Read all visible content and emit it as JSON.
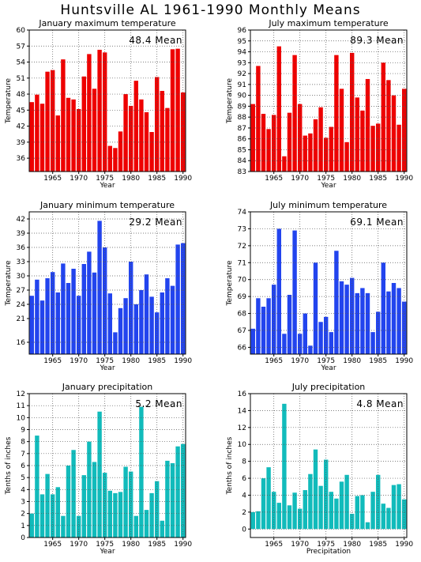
{
  "title": "Huntsville AL   1961-1990 Monthly Means",
  "chart_data": [
    {
      "type": "bar",
      "title": "January maximum temperature",
      "ylabel": "Temperature",
      "xlabel": "Year",
      "mean_label": "48.4 Mean",
      "color": "#ee0000",
      "x": [
        1961,
        1962,
        1963,
        1964,
        1965,
        1966,
        1967,
        1968,
        1969,
        1970,
        1971,
        1972,
        1973,
        1974,
        1975,
        1976,
        1977,
        1978,
        1979,
        1980,
        1981,
        1982,
        1983,
        1984,
        1985,
        1986,
        1987,
        1988,
        1989,
        1990
      ],
      "values": [
        46.5,
        47.9,
        46.2,
        52.2,
        52.5,
        44.0,
        54.5,
        47.3,
        47.0,
        45.2,
        51.3,
        55.5,
        49.0,
        56.3,
        55.8,
        38.3,
        37.9,
        41.0,
        48.0,
        45.8,
        50.5,
        47.0,
        44.6,
        40.9,
        51.2,
        48.6,
        45.4,
        56.4,
        56.5,
        48.3
      ],
      "ylim": [
        33.5,
        60
      ],
      "yticks": [
        36,
        39,
        42,
        45,
        48,
        51,
        54,
        57,
        60
      ],
      "xlim": [
        1960.5,
        1990.5
      ],
      "xticks": [
        1965,
        1970,
        1975,
        1980,
        1985,
        1990
      ]
    },
    {
      "type": "bar",
      "title": "July maximum temperature",
      "ylabel": "Temperature",
      "xlabel": "Year",
      "mean_label": "89.3 Mean",
      "color": "#ee0000",
      "x": [
        1961,
        1962,
        1963,
        1964,
        1965,
        1966,
        1967,
        1968,
        1969,
        1970,
        1971,
        1972,
        1973,
        1974,
        1975,
        1976,
        1977,
        1978,
        1979,
        1980,
        1981,
        1982,
        1983,
        1984,
        1985,
        1986,
        1987,
        1988,
        1989,
        1990
      ],
      "values": [
        89.2,
        92.7,
        88.3,
        86.9,
        88.2,
        94.5,
        84.4,
        88.4,
        93.7,
        89.2,
        86.3,
        86.5,
        87.8,
        88.9,
        86.1,
        87.1,
        93.7,
        90.6,
        85.7,
        93.9,
        89.8,
        88.6,
        91.5,
        87.2,
        87.4,
        93.0,
        91.4,
        90.0,
        87.3,
        90.6
      ],
      "ylim": [
        83,
        96
      ],
      "yticks": [
        83,
        84,
        85,
        86,
        87,
        88,
        89,
        90,
        91,
        92,
        93,
        94,
        95,
        96
      ],
      "xlim": [
        1960.5,
        1990.5
      ],
      "xticks": [
        1965,
        1970,
        1975,
        1980,
        1985,
        1990
      ]
    },
    {
      "type": "bar",
      "title": "January minimum temperature",
      "ylabel": "Temperature",
      "xlabel": "Year",
      "mean_label": "29.2 Mean",
      "color": "#2244ee",
      "x": [
        1961,
        1962,
        1963,
        1964,
        1965,
        1966,
        1967,
        1968,
        1969,
        1970,
        1971,
        1972,
        1973,
        1974,
        1975,
        1976,
        1977,
        1978,
        1979,
        1980,
        1981,
        1982,
        1983,
        1984,
        1985,
        1986,
        1987,
        1988,
        1989,
        1990
      ],
      "values": [
        25.8,
        29.2,
        24.8,
        29.5,
        30.8,
        26.5,
        32.6,
        28.5,
        31.5,
        25.8,
        32.5,
        35.1,
        30.7,
        41.6,
        36.0,
        26.3,
        18.1,
        23.2,
        25.3,
        33.0,
        24.0,
        27.0,
        30.3,
        25.6,
        22.3,
        26.5,
        29.5,
        27.9,
        36.6,
        36.9
      ],
      "ylim": [
        13.5,
        43.5
      ],
      "yticks": [
        16,
        21,
        24,
        27,
        30,
        33,
        36,
        39,
        42
      ],
      "xlim": [
        1960.5,
        1990.5
      ],
      "xticks": [
        1965,
        1970,
        1975,
        1980,
        1985,
        1990
      ]
    },
    {
      "type": "bar",
      "title": "July minimum temperature",
      "ylabel": "Temperature",
      "xlabel": "Year",
      "mean_label": "69.1 Mean",
      "color": "#2244ee",
      "x": [
        1961,
        1962,
        1963,
        1964,
        1965,
        1966,
        1967,
        1968,
        1969,
        1970,
        1971,
        1972,
        1973,
        1974,
        1975,
        1976,
        1977,
        1978,
        1979,
        1980,
        1981,
        1982,
        1983,
        1984,
        1985,
        1986,
        1987,
        1988,
        1989,
        1990
      ],
      "values": [
        67.1,
        68.9,
        68.4,
        68.9,
        69.7,
        73.0,
        66.8,
        69.1,
        72.9,
        66.8,
        68.0,
        66.1,
        71.0,
        67.5,
        67.8,
        66.9,
        71.7,
        69.9,
        69.7,
        70.1,
        69.2,
        69.5,
        69.2,
        66.9,
        68.1,
        71.0,
        69.3,
        69.8,
        69.5,
        68.7
      ],
      "ylim": [
        65.6,
        74
      ],
      "yticks": [
        66,
        67,
        68,
        69,
        70,
        71,
        72,
        73,
        74
      ],
      "xlim": [
        1960.5,
        1990.5
      ],
      "xticks": [
        1965,
        1970,
        1975,
        1980,
        1985,
        1990
      ]
    },
    {
      "type": "bar",
      "title": "January precipitation",
      "ylabel": "Tenths of inches",
      "xlabel": "Year",
      "mean_label": "5.2 Mean",
      "color": "#11bbbb",
      "x": [
        1961,
        1962,
        1963,
        1964,
        1965,
        1966,
        1967,
        1968,
        1969,
        1970,
        1971,
        1972,
        1973,
        1974,
        1975,
        1976,
        1977,
        1978,
        1979,
        1980,
        1981,
        1982,
        1983,
        1984,
        1985,
        1986,
        1987,
        1988,
        1989,
        1990
      ],
      "values": [
        2.0,
        8.5,
        3.6,
        5.3,
        3.6,
        4.2,
        1.8,
        6.0,
        7.3,
        1.8,
        5.2,
        8.0,
        6.3,
        10.5,
        5.4,
        3.9,
        3.7,
        3.8,
        5.9,
        5.5,
        1.8,
        10.9,
        2.3,
        3.7,
        4.7,
        1.4,
        6.4,
        6.2,
        7.6,
        7.8
      ],
      "ylim": [
        0,
        12
      ],
      "yticks": [
        0,
        1,
        2,
        3,
        4,
        5,
        6,
        7,
        8,
        9,
        10,
        11,
        12
      ],
      "xlim": [
        1960.5,
        1990.5
      ],
      "xticks": [
        1965,
        1970,
        1975,
        1980,
        1985,
        1990
      ]
    },
    {
      "type": "bar",
      "title": "July precipitation",
      "ylabel": "Tenths of inches",
      "xlabel": "Precipitation",
      "mean_label": "4.8 Mean",
      "color": "#11bbbb",
      "x": [
        1961,
        1962,
        1963,
        1964,
        1965,
        1966,
        1967,
        1968,
        1969,
        1970,
        1971,
        1972,
        1973,
        1974,
        1975,
        1976,
        1977,
        1978,
        1979,
        1980,
        1981,
        1982,
        1983,
        1984,
        1985,
        1986,
        1987,
        1988,
        1989,
        1990
      ],
      "values": [
        2.0,
        2.1,
        6.0,
        7.3,
        4.4,
        3.1,
        14.8,
        2.8,
        4.3,
        2.4,
        4.6,
        6.5,
        9.4,
        5.1,
        8.2,
        4.4,
        3.6,
        5.6,
        6.4,
        1.8,
        3.9,
        4.0,
        0.8,
        4.4,
        6.4,
        3.0,
        2.5,
        5.2,
        5.3,
        3.5
      ],
      "ylim": [
        -1,
        16
      ],
      "yticks": [
        0,
        2,
        4,
        6,
        8,
        10,
        12,
        14,
        16
      ],
      "xlim": [
        1960.5,
        1990.5
      ],
      "xticks": [
        1965,
        1970,
        1975,
        1980,
        1985,
        1990
      ]
    }
  ]
}
